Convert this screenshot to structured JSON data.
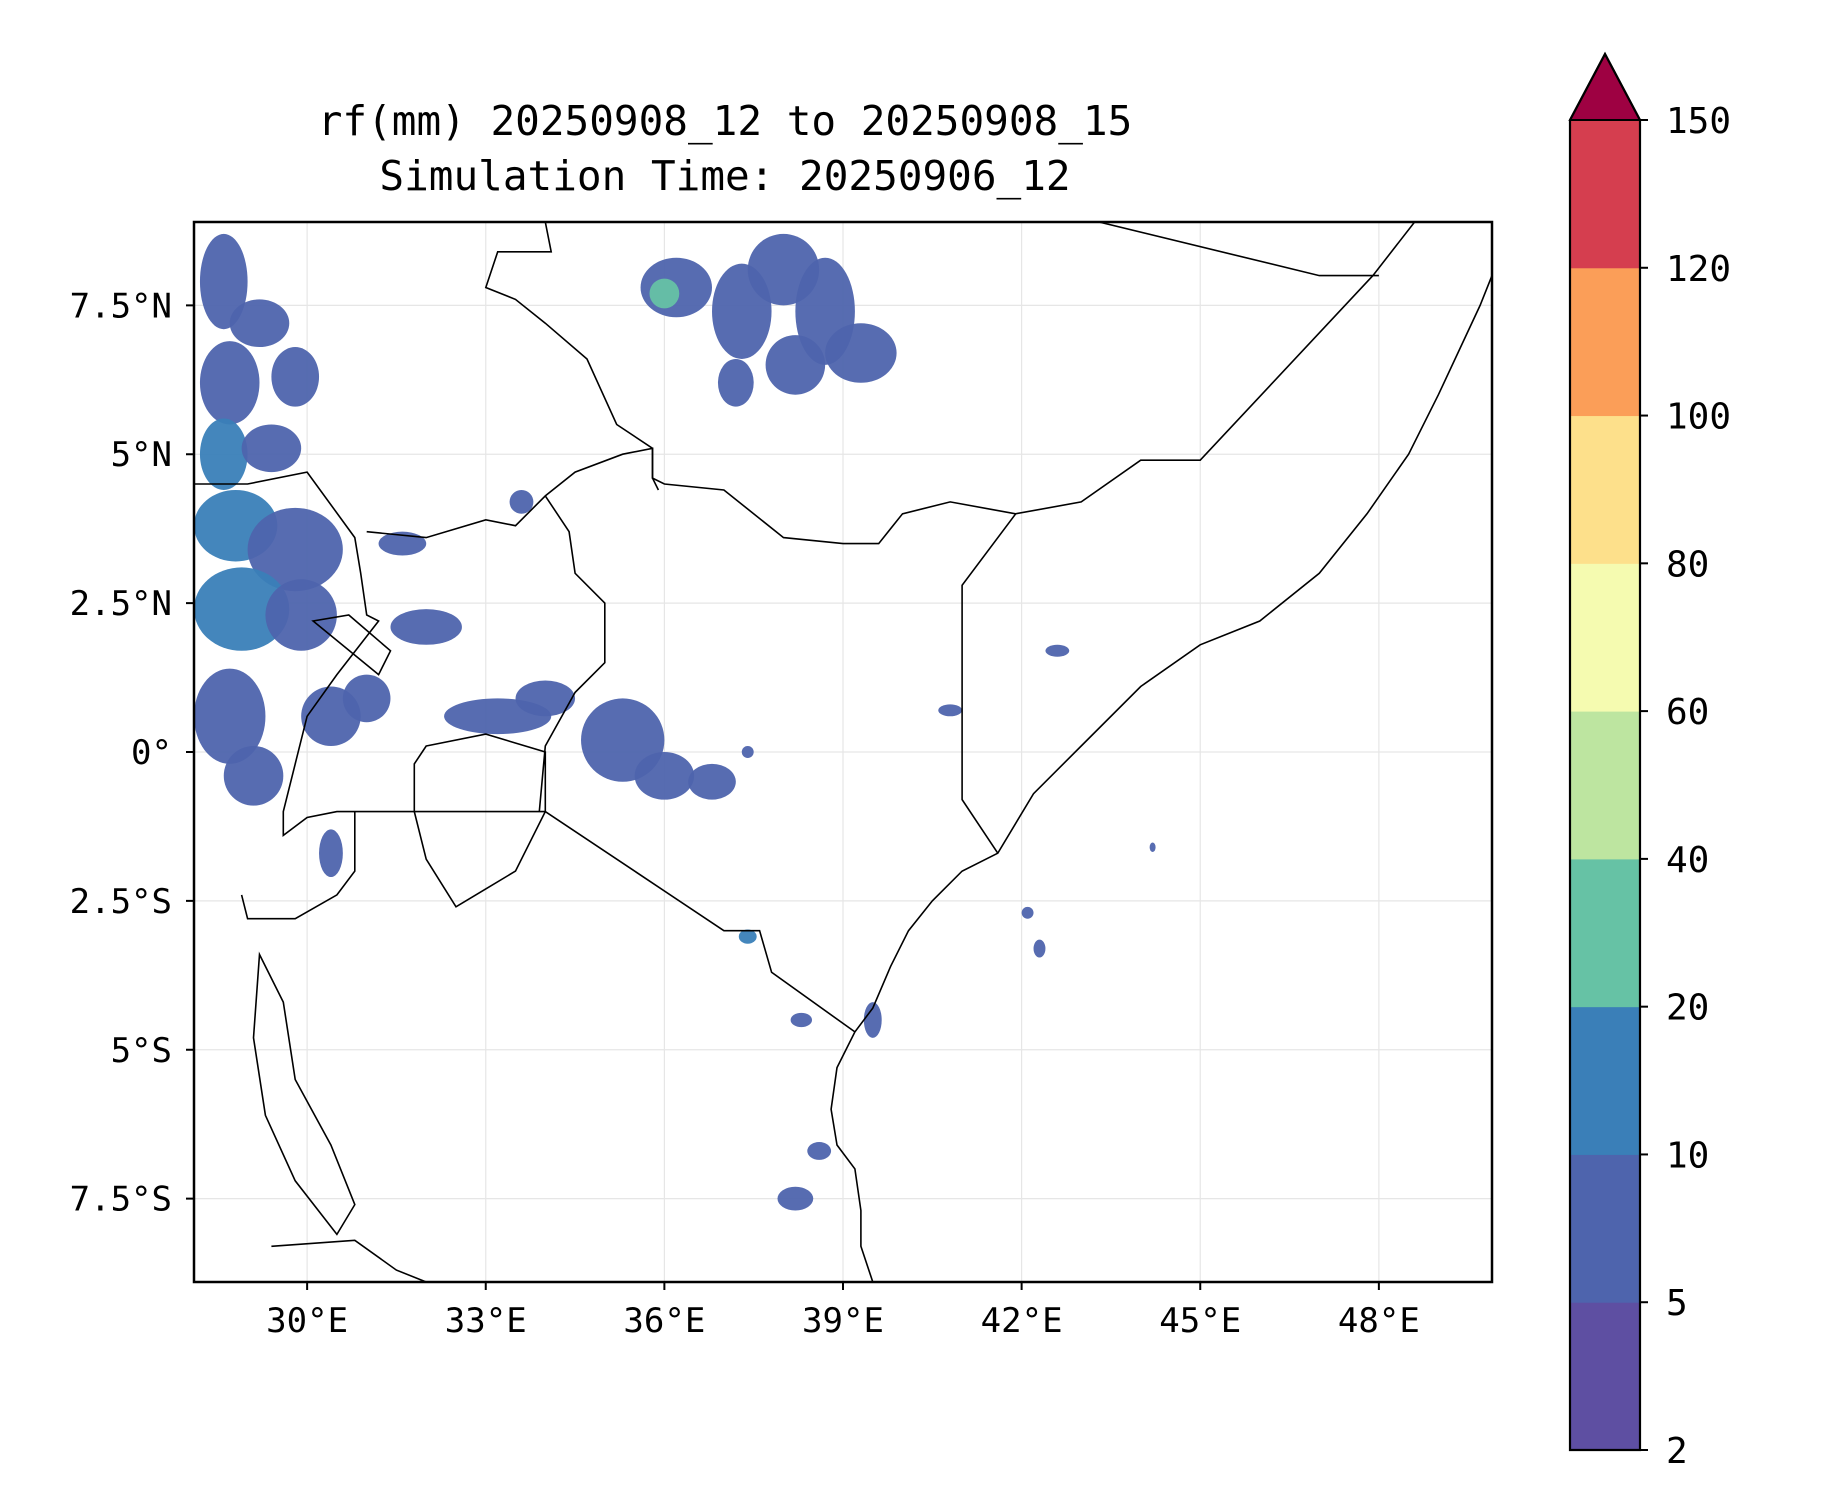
{
  "title": {
    "line1": "rf(mm) 20250908_12 to 20250908_15",
    "line2": "Simulation Time: 20250906_12"
  },
  "map": {
    "lon_range": [
      28.1,
      49.9
    ],
    "lat_range": [
      -8.9,
      8.9
    ],
    "lon_ticks": [
      {
        "value": 30,
        "label": "30°E"
      },
      {
        "value": 33,
        "label": "33°E"
      },
      {
        "value": 36,
        "label": "36°E"
      },
      {
        "value": 39,
        "label": "39°E"
      },
      {
        "value": 42,
        "label": "42°E"
      },
      {
        "value": 45,
        "label": "45°E"
      },
      {
        "value": 48,
        "label": "48°E"
      }
    ],
    "lat_ticks": [
      {
        "value": 7.5,
        "label": "7.5°N"
      },
      {
        "value": 5,
        "label": "5°N"
      },
      {
        "value": 2.5,
        "label": "2.5°N"
      },
      {
        "value": 0,
        "label": "0°"
      },
      {
        "value": -2.5,
        "label": "2.5°S"
      },
      {
        "value": -5,
        "label": "5°S"
      },
      {
        "value": -7.5,
        "label": "7.5°S"
      }
    ],
    "borders": [
      [
        [
          28.1,
          4.5
        ],
        [
          29.0,
          4.5
        ],
        [
          30.0,
          4.7
        ],
        [
          30.8,
          3.6
        ],
        [
          30.9,
          3.0
        ],
        [
          31.0,
          2.3
        ],
        [
          31.2,
          2.2
        ],
        [
          30.5,
          1.3
        ],
        [
          30.0,
          0.6
        ],
        [
          29.8,
          -0.2
        ],
        [
          29.6,
          -1.0
        ],
        [
          29.6,
          -1.4
        ],
        [
          30.0,
          -1.1
        ],
        [
          30.5,
          -1.0
        ],
        [
          31.5,
          -1.0
        ],
        [
          33.9,
          -1.0
        ],
        [
          34.0,
          -1.0
        ],
        [
          35.5,
          -2.0
        ],
        [
          37.0,
          -3.0
        ],
        [
          37.6,
          -3.0
        ],
        [
          37.8,
          -3.7
        ],
        [
          39.2,
          -4.7
        ]
      ],
      [
        [
          31.0,
          3.7
        ],
        [
          32.0,
          3.6
        ],
        [
          33.0,
          3.9
        ],
        [
          33.5,
          3.8
        ],
        [
          34.0,
          4.3
        ],
        [
          34.5,
          4.7
        ],
        [
          35.3,
          5.0
        ],
        [
          35.8,
          5.1
        ],
        [
          35.8,
          4.6
        ],
        [
          36.0,
          4.5
        ],
        [
          37.0,
          4.4
        ],
        [
          38.0,
          3.6
        ],
        [
          39.0,
          3.5
        ],
        [
          39.6,
          3.5
        ],
        [
          40.0,
          4.0
        ],
        [
          40.8,
          4.2
        ],
        [
          41.9,
          4.0
        ],
        [
          41.0,
          2.8
        ],
        [
          41.0,
          -0.8
        ],
        [
          41.6,
          -1.7
        ]
      ],
      [
        [
          34.0,
          4.3
        ],
        [
          34.4,
          3.7
        ],
        [
          34.5,
          3.0
        ],
        [
          35.0,
          2.5
        ],
        [
          35.0,
          1.5
        ],
        [
          34.5,
          1.0
        ],
        [
          34.0,
          0.1
        ],
        [
          33.9,
          -1.0
        ]
      ],
      [
        [
          34.0,
          8.9
        ],
        [
          34.1,
          8.4
        ],
        [
          33.2,
          8.4
        ],
        [
          33.0,
          7.8
        ],
        [
          33.5,
          7.6
        ],
        [
          34.0,
          7.2
        ],
        [
          34.7,
          6.6
        ],
        [
          35.2,
          5.5
        ],
        [
          35.8,
          5.1
        ],
        [
          35.8,
          4.6
        ],
        [
          35.9,
          4.4
        ]
      ],
      [
        [
          41.9,
          4.0
        ],
        [
          43.0,
          4.2
        ],
        [
          44.0,
          4.9
        ],
        [
          45.0,
          4.9
        ],
        [
          47.9,
          8.0
        ],
        [
          48.6,
          8.9
        ]
      ],
      [
        [
          43.3,
          8.9
        ],
        [
          47.0,
          8.0
        ],
        [
          48.0,
          8.0
        ]
      ],
      [
        [
          30.8,
          -1.0
        ],
        [
          30.8,
          -2.0
        ],
        [
          30.5,
          -2.4
        ],
        [
          29.8,
          -2.8
        ],
        [
          29.0,
          -2.8
        ],
        [
          28.9,
          -2.4
        ]
      ],
      [
        [
          29.4,
          -8.3
        ],
        [
          30.8,
          -8.2
        ],
        [
          31.5,
          -8.7
        ],
        [
          32.0,
          -8.9
        ]
      ]
    ],
    "coastline": [
      [
        [
          49.9,
          8.0
        ],
        [
          49.7,
          7.5
        ],
        [
          49.0,
          6.0
        ],
        [
          48.5,
          5.0
        ],
        [
          47.8,
          4.0
        ],
        [
          47.0,
          3.0
        ],
        [
          46.0,
          2.2
        ],
        [
          45.0,
          1.8
        ],
        [
          44.0,
          1.1
        ],
        [
          43.0,
          0.1
        ],
        [
          42.2,
          -0.7
        ],
        [
          41.6,
          -1.7
        ],
        [
          41.0,
          -2.0
        ],
        [
          40.5,
          -2.5
        ],
        [
          40.1,
          -3.0
        ],
        [
          39.8,
          -3.6
        ],
        [
          39.5,
          -4.3
        ],
        [
          39.2,
          -4.7
        ],
        [
          38.9,
          -5.3
        ],
        [
          38.8,
          -6.0
        ],
        [
          38.9,
          -6.6
        ],
        [
          39.2,
          -7.0
        ],
        [
          39.3,
          -7.7
        ],
        [
          39.3,
          -8.3
        ],
        [
          39.5,
          -8.9
        ]
      ]
    ],
    "lakes": [
      [
        [
          32.0,
          0.1
        ],
        [
          33.0,
          0.3
        ],
        [
          34.0,
          0.0
        ],
        [
          34.0,
          -1.0
        ],
        [
          33.5,
          -2.0
        ],
        [
          32.5,
          -2.6
        ],
        [
          32.0,
          -1.8
        ],
        [
          31.8,
          -1.0
        ],
        [
          31.8,
          -0.2
        ]
      ],
      [
        [
          29.2,
          -3.4
        ],
        [
          29.6,
          -4.2
        ],
        [
          29.8,
          -5.5
        ],
        [
          30.4,
          -6.6
        ],
        [
          30.8,
          -7.6
        ],
        [
          30.5,
          -8.1
        ],
        [
          29.8,
          -7.2
        ],
        [
          29.3,
          -6.1
        ],
        [
          29.1,
          -4.8
        ]
      ],
      [
        [
          30.1,
          2.2
        ],
        [
          31.2,
          1.3
        ],
        [
          31.4,
          1.7
        ],
        [
          30.7,
          2.3
        ]
      ]
    ],
    "rain_cells": [
      {
        "lon": 28.6,
        "lat": 7.9,
        "rx": 0.4,
        "ry": 0.8,
        "level": 5
      },
      {
        "lon": 29.2,
        "lat": 7.2,
        "rx": 0.5,
        "ry": 0.4,
        "level": 5
      },
      {
        "lon": 28.7,
        "lat": 6.2,
        "rx": 0.5,
        "ry": 0.7,
        "level": 5
      },
      {
        "lon": 29.8,
        "lat": 6.3,
        "rx": 0.4,
        "ry": 0.5,
        "level": 5
      },
      {
        "lon": 28.6,
        "lat": 5.0,
        "rx": 0.4,
        "ry": 0.6,
        "level": 10
      },
      {
        "lon": 29.4,
        "lat": 5.1,
        "rx": 0.5,
        "ry": 0.4,
        "level": 5
      },
      {
        "lon": 28.8,
        "lat": 3.8,
        "rx": 0.7,
        "ry": 0.6,
        "level": 10
      },
      {
        "lon": 29.8,
        "lat": 3.4,
        "rx": 0.8,
        "ry": 0.7,
        "level": 5
      },
      {
        "lon": 28.9,
        "lat": 2.4,
        "rx": 0.8,
        "ry": 0.7,
        "level": 10
      },
      {
        "lon": 29.9,
        "lat": 2.3,
        "rx": 0.6,
        "ry": 0.6,
        "level": 5
      },
      {
        "lon": 28.7,
        "lat": 0.6,
        "rx": 0.6,
        "ry": 0.8,
        "level": 5
      },
      {
        "lon": 29.1,
        "lat": -0.4,
        "rx": 0.5,
        "ry": 0.5,
        "level": 5
      },
      {
        "lon": 30.4,
        "lat": 0.6,
        "rx": 0.5,
        "ry": 0.5,
        "level": 5
      },
      {
        "lon": 31.0,
        "lat": 0.9,
        "rx": 0.4,
        "ry": 0.4,
        "level": 5
      },
      {
        "lon": 32.0,
        "lat": 2.1,
        "rx": 0.6,
        "ry": 0.3,
        "level": 5
      },
      {
        "lon": 31.6,
        "lat": 3.5,
        "rx": 0.4,
        "ry": 0.2,
        "level": 5
      },
      {
        "lon": 33.6,
        "lat": 4.2,
        "rx": 0.2,
        "ry": 0.2,
        "level": 5
      },
      {
        "lon": 33.2,
        "lat": 0.6,
        "rx": 0.9,
        "ry": 0.3,
        "level": 5
      },
      {
        "lon": 34.0,
        "lat": 0.9,
        "rx": 0.5,
        "ry": 0.3,
        "level": 5
      },
      {
        "lon": 35.3,
        "lat": 0.2,
        "rx": 0.7,
        "ry": 0.7,
        "level": 5
      },
      {
        "lon": 36.0,
        "lat": -0.4,
        "rx": 0.5,
        "ry": 0.4,
        "level": 5
      },
      {
        "lon": 36.8,
        "lat": -0.5,
        "rx": 0.4,
        "ry": 0.3,
        "level": 5
      },
      {
        "lon": 30.4,
        "lat": -1.7,
        "rx": 0.2,
        "ry": 0.4,
        "level": 5
      },
      {
        "lon": 36.2,
        "lat": 7.8,
        "rx": 0.6,
        "ry": 0.5,
        "level": 5
      },
      {
        "lon": 36.0,
        "lat": 7.7,
        "rx": 0.25,
        "ry": 0.25,
        "level": 20
      },
      {
        "lon": 37.3,
        "lat": 7.4,
        "rx": 0.5,
        "ry": 0.8,
        "level": 5
      },
      {
        "lon": 38.0,
        "lat": 8.1,
        "rx": 0.6,
        "ry": 0.6,
        "level": 5
      },
      {
        "lon": 38.7,
        "lat": 7.4,
        "rx": 0.5,
        "ry": 0.9,
        "level": 5
      },
      {
        "lon": 39.3,
        "lat": 6.7,
        "rx": 0.6,
        "ry": 0.5,
        "level": 5
      },
      {
        "lon": 38.2,
        "lat": 6.5,
        "rx": 0.5,
        "ry": 0.5,
        "level": 5
      },
      {
        "lon": 37.2,
        "lat": 6.2,
        "rx": 0.3,
        "ry": 0.4,
        "level": 5
      },
      {
        "lon": 42.6,
        "lat": 1.7,
        "rx": 0.2,
        "ry": 0.1,
        "level": 5
      },
      {
        "lon": 40.8,
        "lat": 0.7,
        "rx": 0.2,
        "ry": 0.1,
        "level": 5
      },
      {
        "lon": 37.4,
        "lat": 0.0,
        "rx": 0.1,
        "ry": 0.1,
        "level": 5
      },
      {
        "lon": 37.4,
        "lat": -3.1,
        "rx": 0.15,
        "ry": 0.12,
        "level": 10
      },
      {
        "lon": 38.3,
        "lat": -4.5,
        "rx": 0.18,
        "ry": 0.12,
        "level": 5
      },
      {
        "lon": 39.5,
        "lat": -4.5,
        "rx": 0.15,
        "ry": 0.3,
        "level": 5
      },
      {
        "lon": 38.2,
        "lat": -7.5,
        "rx": 0.3,
        "ry": 0.2,
        "level": 5
      },
      {
        "lon": 38.6,
        "lat": -6.7,
        "rx": 0.2,
        "ry": 0.15,
        "level": 5
      },
      {
        "lon": 42.1,
        "lat": -2.7,
        "rx": 0.1,
        "ry": 0.1,
        "level": 5
      },
      {
        "lon": 42.3,
        "lat": -3.3,
        "rx": 0.1,
        "ry": 0.15,
        "level": 5
      },
      {
        "lon": 44.2,
        "lat": -1.6,
        "rx": 0.05,
        "ry": 0.08,
        "level": 5
      }
    ]
  },
  "colorbar": {
    "bounds": [
      2,
      5,
      10,
      20,
      40,
      60,
      80,
      100,
      120,
      150
    ],
    "labels": [
      "2",
      "5",
      "10",
      "20",
      "40",
      "60",
      "80",
      "100",
      "120",
      "150"
    ],
    "colors": [
      "#5e4fa2",
      "#4e64ad",
      "#3a7fb8",
      "#66c2a5",
      "#bde5a0",
      "#f5fbb0",
      "#fde08b",
      "#fb9e58",
      "#d53e4f"
    ],
    "extend_color": "#9e0142"
  }
}
